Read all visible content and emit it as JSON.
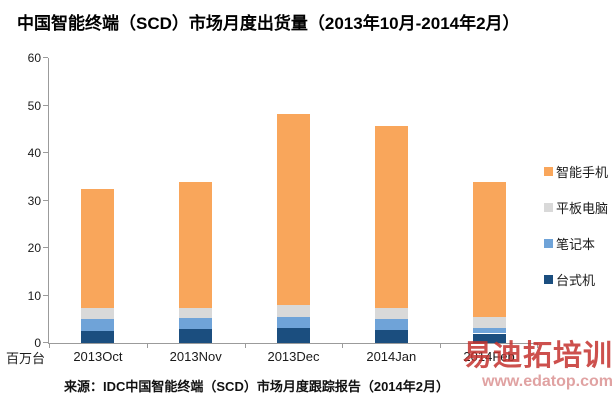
{
  "title": "中国智能终端（SCD）市场月度出货量（2013年10月-2014年2月）",
  "source": "来源：IDC中国智能终端（SCD）市场月度跟踪报告（2014年2月）",
  "watermark": {
    "text": "易迪拓培训",
    "url": "www.edatop.com",
    "text_color": "#c5322e",
    "url_color": "#d98b8b"
  },
  "colors": {
    "axis": "#9b9b9b",
    "title_text": "#000000"
  },
  "chart_data": {
    "type": "bar",
    "stacked": true,
    "title": "中国智能终端（SCD）市场月度出货量（2013年10月-2014年2月）",
    "xlabel": "",
    "ylabel": "百万台",
    "categories": [
      "2013Oct",
      "2013Nov",
      "2013Dec",
      "2014Jan",
      "2014Feb"
    ],
    "series": [
      {
        "name": "台式机",
        "color": "#1b4e7f",
        "values": [
          2.5,
          2.9,
          3.2,
          2.7,
          2.0
        ]
      },
      {
        "name": "笔记本",
        "color": "#6fa3d8",
        "values": [
          2.5,
          2.3,
          2.3,
          2.3,
          1.2
        ]
      },
      {
        "name": "平板电脑",
        "color": "#d9d9d9",
        "values": [
          2.3,
          2.2,
          2.6,
          2.3,
          2.3
        ]
      },
      {
        "name": "智能手机",
        "color": "#f9a65b",
        "values": [
          25.2,
          26.6,
          40.2,
          38.3,
          28.5
        ]
      }
    ],
    "stack_totals": [
      32.5,
      34.0,
      48.3,
      45.6,
      34.0
    ],
    "legend_order": [
      "智能手机",
      "平板电脑",
      "笔记本",
      "台式机"
    ],
    "legend_position": "right",
    "ylim": [
      0,
      60
    ],
    "ytick_step": 10,
    "grid": false
  }
}
